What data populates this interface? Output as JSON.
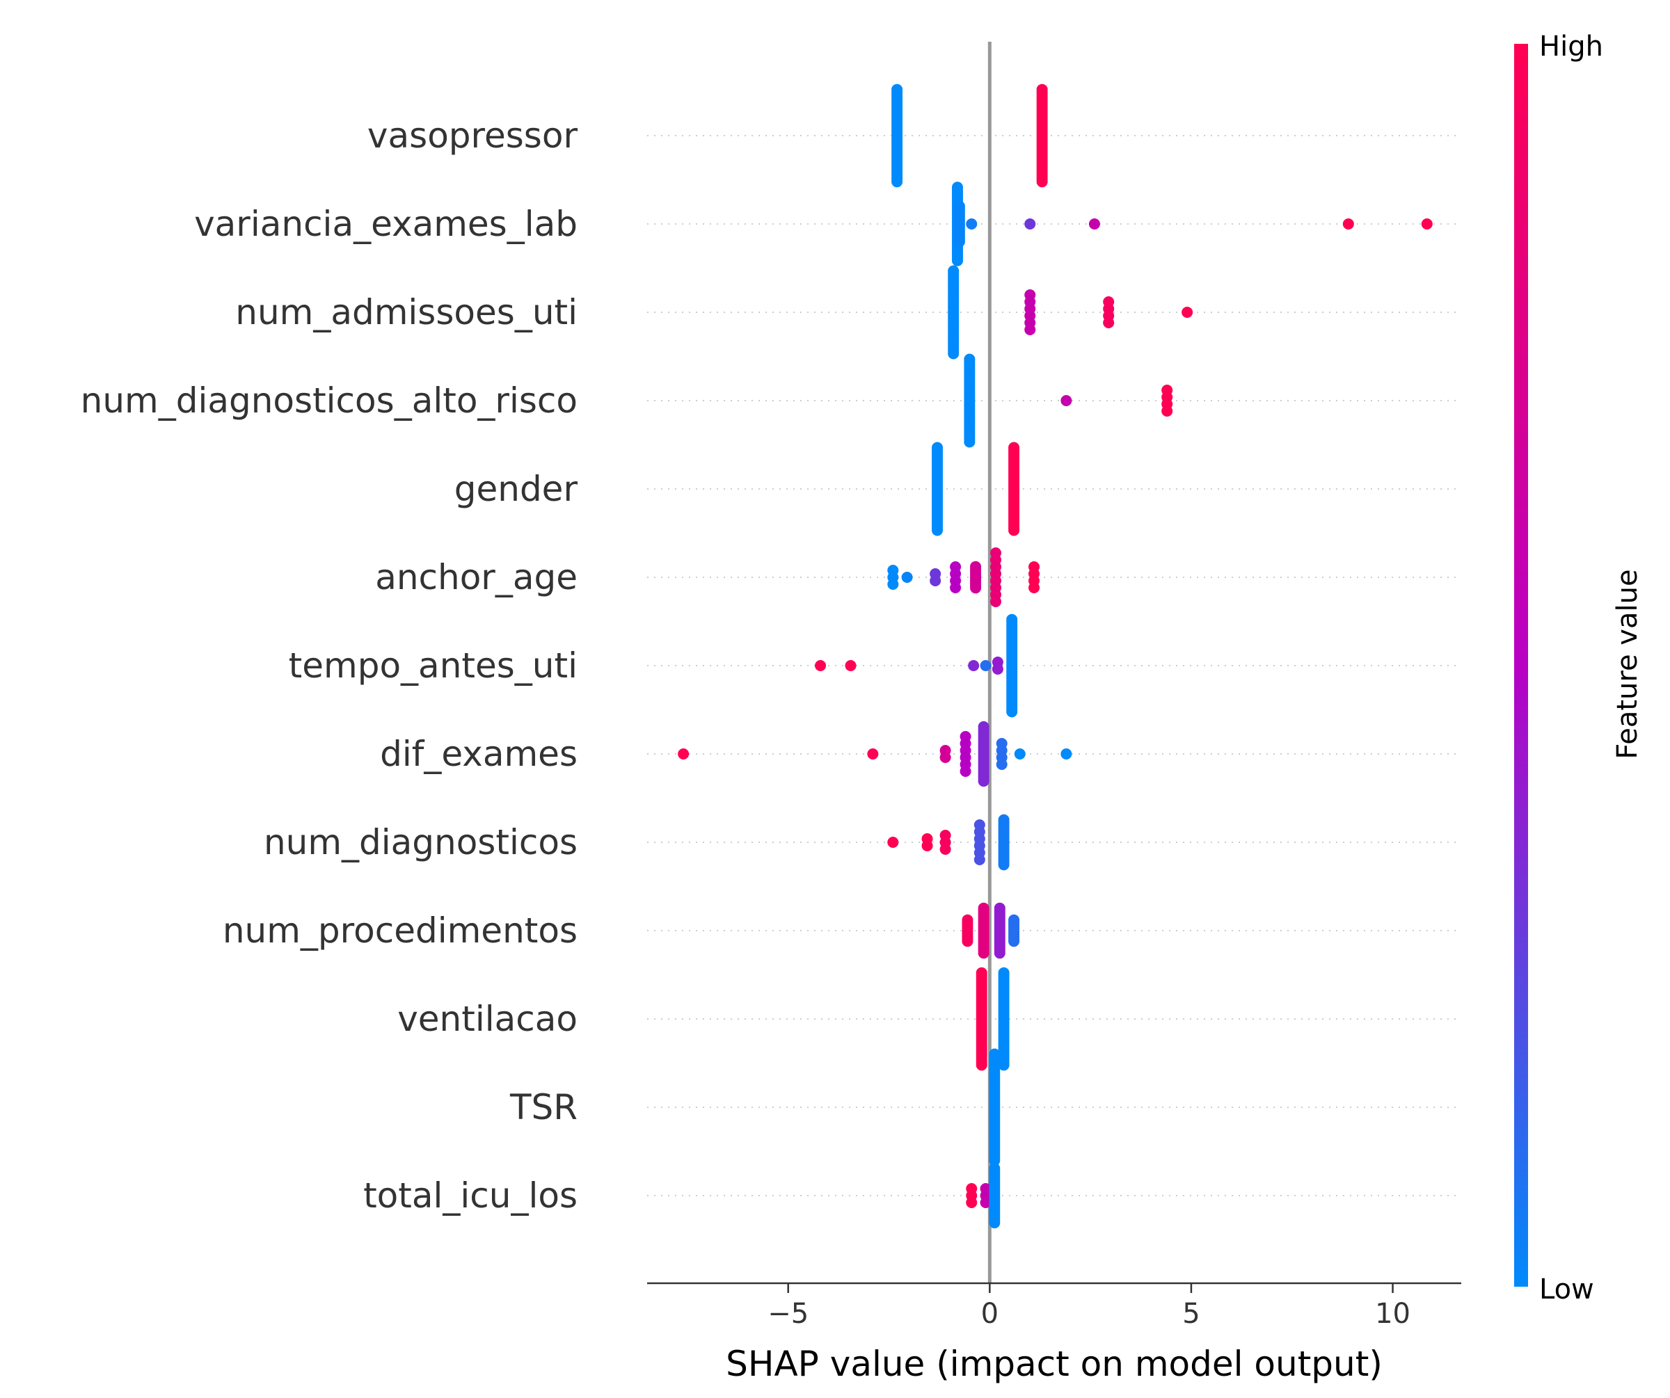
{
  "chart_data": {
    "type": "scatter",
    "subtype": "shap-beeswarm",
    "xlabel": "SHAP value (impact on model output)",
    "xlim": [
      -8.5,
      11.7
    ],
    "xticks": [
      {
        "value": -5,
        "label": "−5"
      },
      {
        "value": 0,
        "label": "0"
      },
      {
        "value": 5,
        "label": "5"
      },
      {
        "value": 10,
        "label": "10"
      }
    ],
    "zero_line": 0,
    "colorbar": {
      "title": "Feature value",
      "high_label": "High",
      "low_label": "Low",
      "low_color": "#008afb",
      "mid_color": "#b800c4",
      "high_color": "#ff0052"
    },
    "features": [
      {
        "name": "vasopressor",
        "points": [
          {
            "x": -2.3,
            "v": 0.0,
            "n": 40
          },
          {
            "x": 1.3,
            "v": 1.0,
            "n": 40
          }
        ]
      },
      {
        "name": "variancia_exames_lab",
        "points": [
          {
            "x": -0.8,
            "v": 0.0,
            "n": 32
          },
          {
            "x": -0.75,
            "v": 0.02,
            "n": 16
          },
          {
            "x": -0.45,
            "v": 0.05,
            "n": 1
          },
          {
            "x": 1.0,
            "v": 0.3,
            "n": 1
          },
          {
            "x": 2.6,
            "v": 0.6,
            "n": 1
          },
          {
            "x": 8.9,
            "v": 1.0,
            "n": 1
          },
          {
            "x": 10.85,
            "v": 1.0,
            "n": 1
          }
        ]
      },
      {
        "name": "num_admissoes_uti",
        "points": [
          {
            "x": -0.9,
            "v": 0.0,
            "n": 36
          },
          {
            "x": 1.0,
            "v": 0.6,
            "n": 6
          },
          {
            "x": 2.95,
            "v": 0.95,
            "n": 4
          },
          {
            "x": 4.9,
            "v": 1.0,
            "n": 1
          }
        ]
      },
      {
        "name": "num_diagnosticos_alto_risco",
        "points": [
          {
            "x": -0.5,
            "v": 0.0,
            "n": 36
          },
          {
            "x": 1.9,
            "v": 0.6,
            "n": 1
          },
          {
            "x": 4.4,
            "v": 1.0,
            "n": 4
          }
        ]
      },
      {
        "name": "gender",
        "points": [
          {
            "x": -1.3,
            "v": 0.0,
            "n": 36
          },
          {
            "x": 0.6,
            "v": 1.0,
            "n": 36
          }
        ]
      },
      {
        "name": "anchor_age",
        "points": [
          {
            "x": -2.4,
            "v": 0.0,
            "n": 3
          },
          {
            "x": -2.05,
            "v": 0.02,
            "n": 1
          },
          {
            "x": -1.35,
            "v": 0.3,
            "n": 2
          },
          {
            "x": -0.85,
            "v": 0.5,
            "n": 4
          },
          {
            "x": -0.35,
            "v": 0.7,
            "n": 10
          },
          {
            "x": 0.15,
            "v": 0.85,
            "n": 8
          },
          {
            "x": 1.1,
            "v": 1.0,
            "n": 4
          }
        ]
      },
      {
        "name": "tempo_antes_uti",
        "points": [
          {
            "x": -4.2,
            "v": 1.0,
            "n": 1
          },
          {
            "x": -3.45,
            "v": 1.0,
            "n": 1
          },
          {
            "x": -0.4,
            "v": 0.35,
            "n": 1
          },
          {
            "x": -0.1,
            "v": 0.1,
            "n": 1
          },
          {
            "x": 0.2,
            "v": 0.4,
            "n": 2
          },
          {
            "x": 0.55,
            "v": 0.0,
            "n": 40
          }
        ]
      },
      {
        "name": "dif_exames",
        "points": [
          {
            "x": -7.6,
            "v": 1.0,
            "n": 1
          },
          {
            "x": -2.9,
            "v": 1.0,
            "n": 1
          },
          {
            "x": -1.1,
            "v": 0.7,
            "n": 2
          },
          {
            "x": -0.6,
            "v": 0.5,
            "n": 6
          },
          {
            "x": -0.15,
            "v": 0.35,
            "n": 24
          },
          {
            "x": 0.3,
            "v": 0.1,
            "n": 4
          },
          {
            "x": 0.75,
            "v": 0.0,
            "n": 1
          },
          {
            "x": 1.9,
            "v": 0.0,
            "n": 1
          }
        ]
      },
      {
        "name": "num_diagnosticos",
        "points": [
          {
            "x": -2.4,
            "v": 1.0,
            "n": 1
          },
          {
            "x": -1.55,
            "v": 1.0,
            "n": 2
          },
          {
            "x": -1.1,
            "v": 0.95,
            "n": 3
          },
          {
            "x": -0.25,
            "v": 0.2,
            "n": 6
          },
          {
            "x": 0.35,
            "v": 0.05,
            "n": 20
          }
        ]
      },
      {
        "name": "num_procedimentos",
        "points": [
          {
            "x": -0.55,
            "v": 0.95,
            "n": 10
          },
          {
            "x": -0.15,
            "v": 0.8,
            "n": 20
          },
          {
            "x": 0.25,
            "v": 0.4,
            "n": 20
          },
          {
            "x": 0.6,
            "v": 0.1,
            "n": 10
          }
        ]
      },
      {
        "name": "ventilacao",
        "points": [
          {
            "x": -0.2,
            "v": 1.0,
            "n": 40
          },
          {
            "x": 0.35,
            "v": 0.0,
            "n": 40
          }
        ]
      },
      {
        "name": "TSR",
        "points": [
          {
            "x": 0.12,
            "v": 0.0,
            "n": 46
          }
        ]
      },
      {
        "name": "total_icu_los",
        "points": [
          {
            "x": -0.45,
            "v": 1.0,
            "n": 3
          },
          {
            "x": -0.1,
            "v": 0.6,
            "n": 3
          },
          {
            "x": 0.12,
            "v": 0.0,
            "n": 24
          }
        ]
      }
    ]
  }
}
